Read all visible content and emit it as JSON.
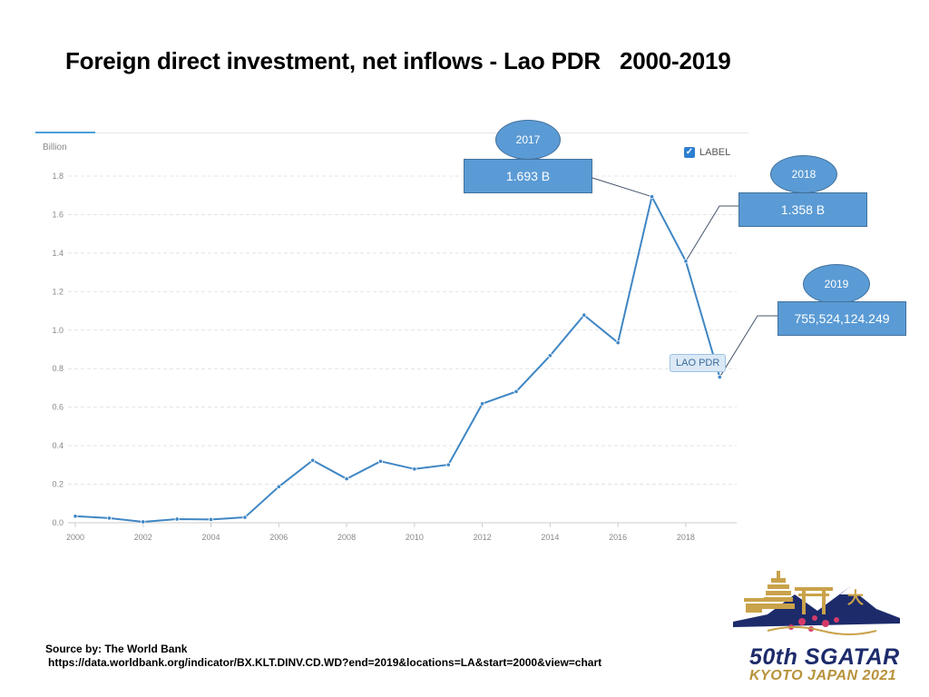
{
  "title": "Foreign direct investment, net inflows - Lao PDR   2000-2019",
  "chart_data": {
    "type": "line",
    "title": "Foreign direct investment, net inflows - Lao PDR   2000-2019",
    "ylabel": "Billion",
    "xlabel": "",
    "ylim": [
      0,
      1.8
    ],
    "yticks": [
      "0.0",
      "0.2",
      "0.4",
      "0.6",
      "0.8",
      "1.0",
      "1.2",
      "1.4",
      "1.6",
      "1.8"
    ],
    "xticks": [
      "2000",
      "2002",
      "2004",
      "2006",
      "2008",
      "2010",
      "2012",
      "2014",
      "2016",
      "2018"
    ],
    "legend": "top-right",
    "grid": true,
    "series": [
      {
        "name": "LAO PDR",
        "color": "#3f86c4",
        "x": [
          2000,
          2001,
          2002,
          2003,
          2004,
          2005,
          2006,
          2007,
          2008,
          2009,
          2010,
          2011,
          2012,
          2013,
          2014,
          2015,
          2016,
          2017,
          2018,
          2019
        ],
        "values": [
          0.034,
          0.024,
          0.005,
          0.019,
          0.017,
          0.028,
          0.187,
          0.324,
          0.228,
          0.319,
          0.279,
          0.301,
          0.618,
          0.681,
          0.868,
          1.078,
          0.935,
          1.693,
          1.358,
          0.756
        ]
      }
    ]
  },
  "legend": {
    "checkbox_mark": "✓",
    "label": "LABEL"
  },
  "series_tag": "LAO PDR",
  "callouts": [
    {
      "year": "2017",
      "value": "1.693 B"
    },
    {
      "year": "2018",
      "value": "1.358 B"
    },
    {
      "year": "2019",
      "value": "755,524,124.249"
    }
  ],
  "source": {
    "line1": "Source by: The World Bank",
    "line2": "https://data.worldbank.org/indicator/BX.KLT.DINV.CD.WD?end=2019&locations=LA&start=2000&view=chart"
  },
  "logo": {
    "line1": "50th SGATAR",
    "line2": "KYOTO JAPAN 2021",
    "kanji": "大"
  },
  "colors": {
    "line": "#3f86c4",
    "callout_fill": "#5b9bd5",
    "callout_border": "#41719c",
    "logo_navy": "#1d2b6b",
    "logo_gold": "#b8923a"
  }
}
